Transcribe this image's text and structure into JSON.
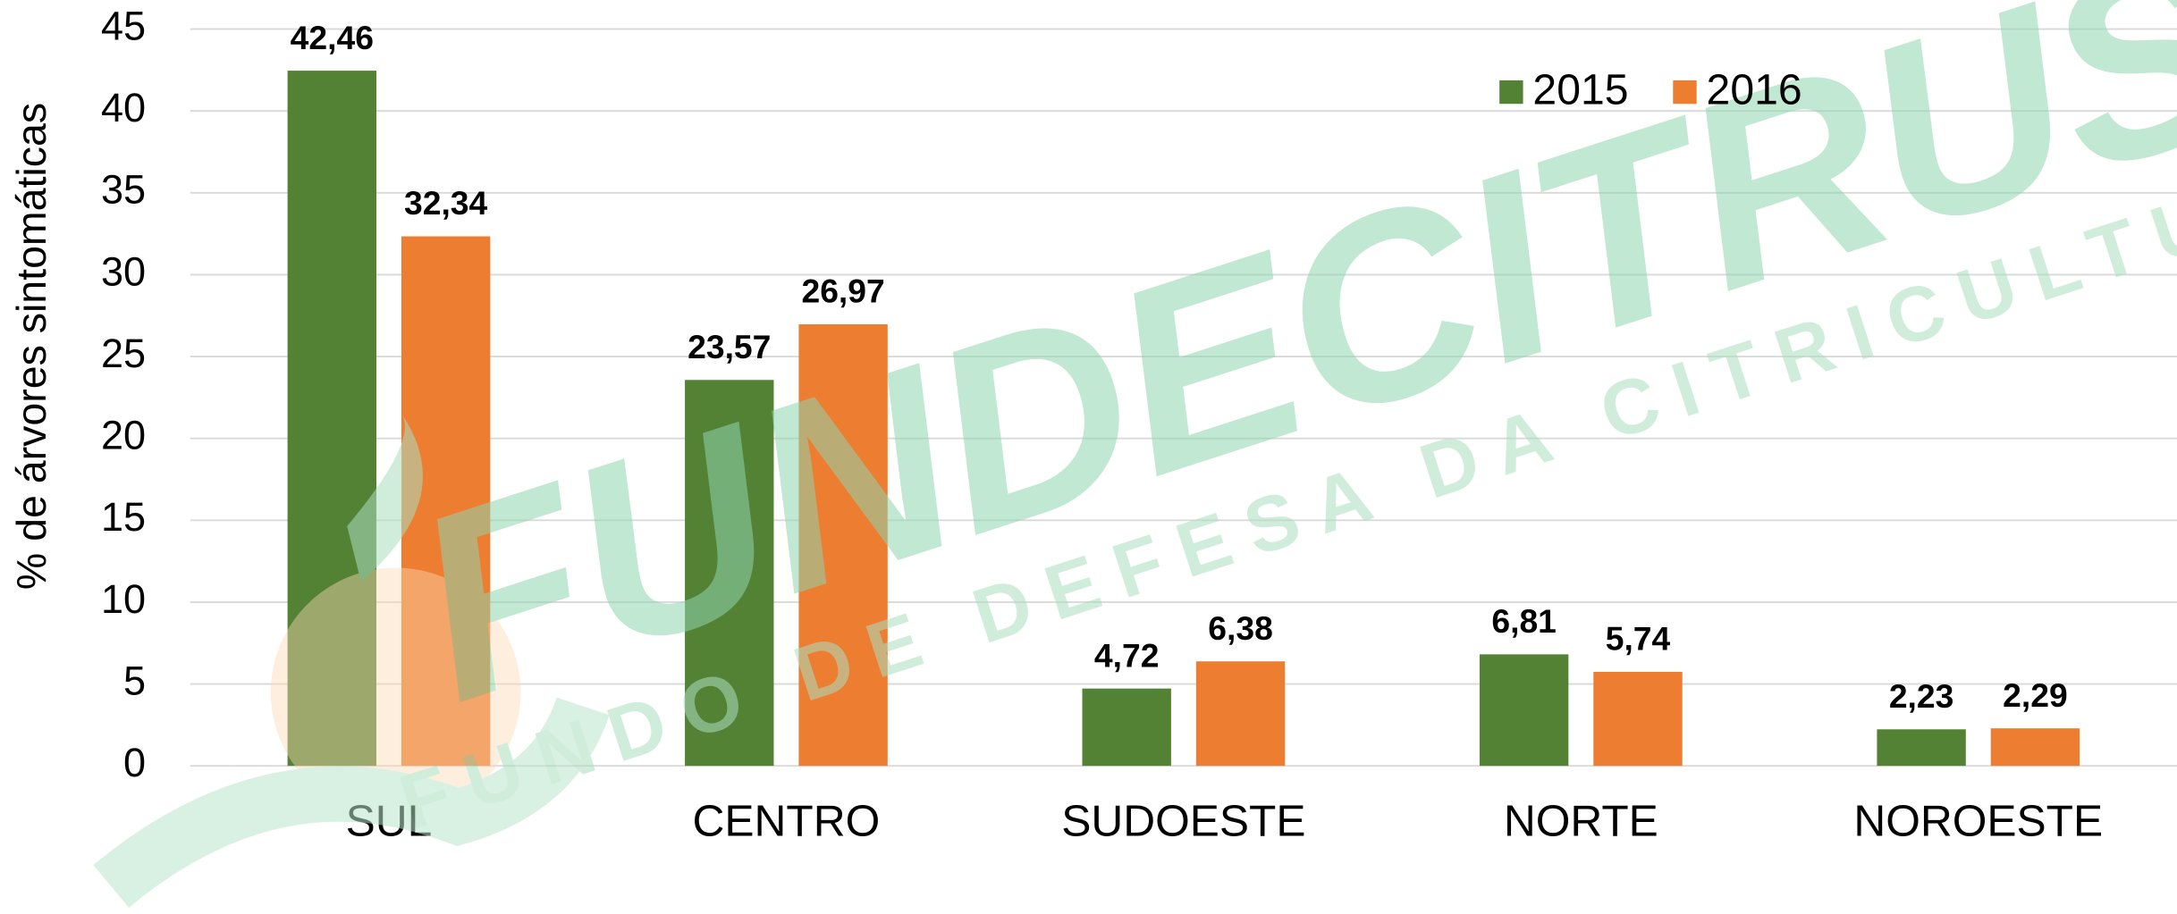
{
  "chart_data": {
    "type": "bar",
    "ylabel": "% de árvores sintomáticas",
    "categories": [
      "SUL",
      "CENTRO",
      "SUDOESTE",
      "NORTE",
      "NOROESTE"
    ],
    "series": [
      {
        "name": "2015",
        "color": "#548235",
        "values": [
          42.46,
          23.57,
          4.72,
          6.81,
          2.23
        ],
        "value_labels": [
          "42,46",
          "23,57",
          "4,72",
          "6,81",
          "2,23"
        ]
      },
      {
        "name": "2016",
        "color": "#ed7d31",
        "values": [
          32.34,
          26.97,
          6.38,
          5.74,
          2.29
        ],
        "value_labels": [
          "32,34",
          "26,97",
          "6,38",
          "5,74",
          "2,29"
        ]
      }
    ],
    "ylim": [
      0,
      45
    ],
    "yticks": [
      0,
      5,
      10,
      15,
      20,
      25,
      30,
      35,
      40,
      45
    ],
    "grid": true,
    "legend": "top-right"
  },
  "watermark": {
    "title": "FUNDECITRUS",
    "subtitle": "FUNDO DE DEFESA DA CITRICULTURA"
  }
}
